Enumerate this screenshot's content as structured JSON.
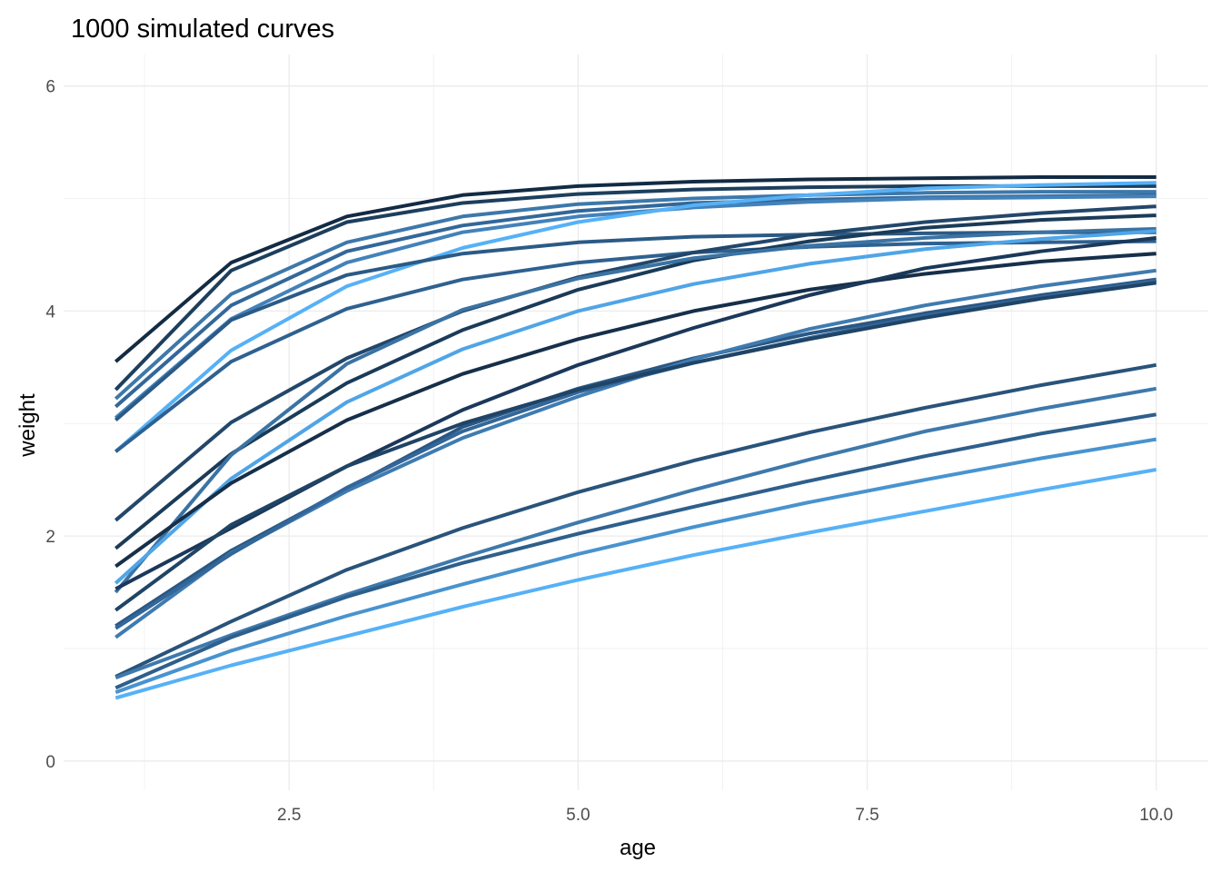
{
  "chart_data": {
    "type": "line",
    "title": "1000 simulated curves",
    "xlabel": "age",
    "ylabel": "weight",
    "xlim": [
      0.55,
      10.45
    ],
    "ylim": [
      -0.26,
      6.28
    ],
    "x_ticks": [
      2.5,
      5.0,
      7.5,
      10.0
    ],
    "x_tick_labels": [
      "2.5",
      "5.0",
      "7.5",
      "10.0"
    ],
    "y_ticks": [
      0,
      2,
      4,
      6
    ],
    "y_tick_labels": [
      "0",
      "2",
      "4",
      "6"
    ],
    "grid": true,
    "legend": "none",
    "x": [
      1,
      2,
      3,
      4,
      5,
      6,
      7,
      8,
      9,
      10
    ],
    "series": [
      {
        "color": "#132b43",
        "values": [
          3.55,
          4.43,
          4.84,
          5.03,
          5.11,
          5.15,
          5.17,
          5.18,
          5.19,
          5.19
        ]
      },
      {
        "color": "#1d3f5e",
        "values": [
          3.3,
          4.36,
          4.79,
          4.96,
          5.04,
          5.08,
          5.1,
          5.11,
          5.11,
          5.11
        ]
      },
      {
        "color": "#3d78aa",
        "values": [
          3.22,
          4.15,
          4.61,
          4.84,
          4.95,
          5.0,
          5.03,
          5.05,
          5.06,
          5.06
        ]
      },
      {
        "color": "#336799",
        "values": [
          3.15,
          4.05,
          4.53,
          4.76,
          4.89,
          4.96,
          4.99,
          5.01,
          5.02,
          5.03
        ]
      },
      {
        "color": "#4382ba",
        "values": [
          3.05,
          3.93,
          4.43,
          4.7,
          4.84,
          4.92,
          4.97,
          5.0,
          5.01,
          5.02
        ]
      },
      {
        "color": "#56b1f7",
        "values": [
          2.75,
          3.65,
          4.22,
          4.56,
          4.79,
          4.94,
          5.03,
          5.09,
          5.12,
          5.14
        ]
      },
      {
        "color": "#2b5a86",
        "values": [
          3.03,
          3.92,
          4.32,
          4.51,
          4.61,
          4.66,
          4.68,
          4.69,
          4.7,
          4.7
        ]
      },
      {
        "color": "#2f6190",
        "values": [
          2.75,
          3.55,
          4.02,
          4.28,
          4.43,
          4.52,
          4.57,
          4.6,
          4.61,
          4.62
        ]
      },
      {
        "color": "#22476a",
        "values": [
          2.14,
          3.01,
          3.58,
          4.0,
          4.3,
          4.52,
          4.68,
          4.79,
          4.87,
          4.93
        ]
      },
      {
        "color": "#1a3b58",
        "values": [
          1.89,
          2.73,
          3.36,
          3.83,
          4.19,
          4.45,
          4.62,
          4.74,
          4.81,
          4.85
        ]
      },
      {
        "color": "#3a73a4",
        "values": [
          1.5,
          2.72,
          3.53,
          4.01,
          4.29,
          4.47,
          4.58,
          4.65,
          4.7,
          4.73
        ]
      },
      {
        "color": "#4fa5e7",
        "values": [
          1.58,
          2.51,
          3.19,
          3.66,
          4.0,
          4.24,
          4.42,
          4.55,
          4.64,
          4.71
        ]
      },
      {
        "color": "#162f4a",
        "values": [
          1.73,
          2.47,
          3.03,
          3.44,
          3.75,
          4.0,
          4.19,
          4.33,
          4.44,
          4.51
        ]
      },
      {
        "color": "#1b385a",
        "values": [
          1.53,
          2.07,
          2.62,
          3.12,
          3.52,
          3.85,
          4.14,
          4.38,
          4.53,
          4.65
        ]
      },
      {
        "color": "#2a5783",
        "values": [
          1.2,
          1.87,
          2.42,
          2.97,
          3.31,
          3.58,
          3.8,
          3.98,
          4.14,
          4.28
        ]
      },
      {
        "color": "#3f7bb0",
        "values": [
          1.1,
          1.85,
          2.4,
          2.87,
          3.24,
          3.57,
          3.84,
          4.05,
          4.22,
          4.36
        ]
      },
      {
        "color": "#336699",
        "values": [
          1.18,
          1.84,
          2.43,
          2.93,
          3.28,
          3.54,
          3.76,
          3.96,
          4.12,
          4.27
        ]
      },
      {
        "color": "#1f4466",
        "values": [
          1.34,
          2.1,
          2.62,
          3.0,
          3.3,
          3.54,
          3.75,
          3.94,
          4.11,
          4.25
        ]
      },
      {
        "color": "#29537a",
        "values": [
          0.75,
          1.24,
          1.7,
          2.07,
          2.39,
          2.67,
          2.92,
          3.14,
          3.34,
          3.52
        ]
      },
      {
        "color": "#3e79ac",
        "values": [
          0.74,
          1.12,
          1.48,
          1.81,
          2.12,
          2.41,
          2.68,
          2.93,
          3.13,
          3.31
        ]
      },
      {
        "color": "#2e5f8c",
        "values": [
          0.65,
          1.1,
          1.46,
          1.76,
          2.02,
          2.26,
          2.49,
          2.71,
          2.91,
          3.08
        ]
      },
      {
        "color": "#4893cf",
        "values": [
          0.61,
          0.98,
          1.29,
          1.57,
          1.84,
          2.08,
          2.3,
          2.5,
          2.69,
          2.86
        ]
      },
      {
        "color": "#56b1f7",
        "values": [
          0.56,
          0.85,
          1.11,
          1.37,
          1.61,
          1.83,
          2.03,
          2.22,
          2.41,
          2.59
        ]
      }
    ]
  }
}
